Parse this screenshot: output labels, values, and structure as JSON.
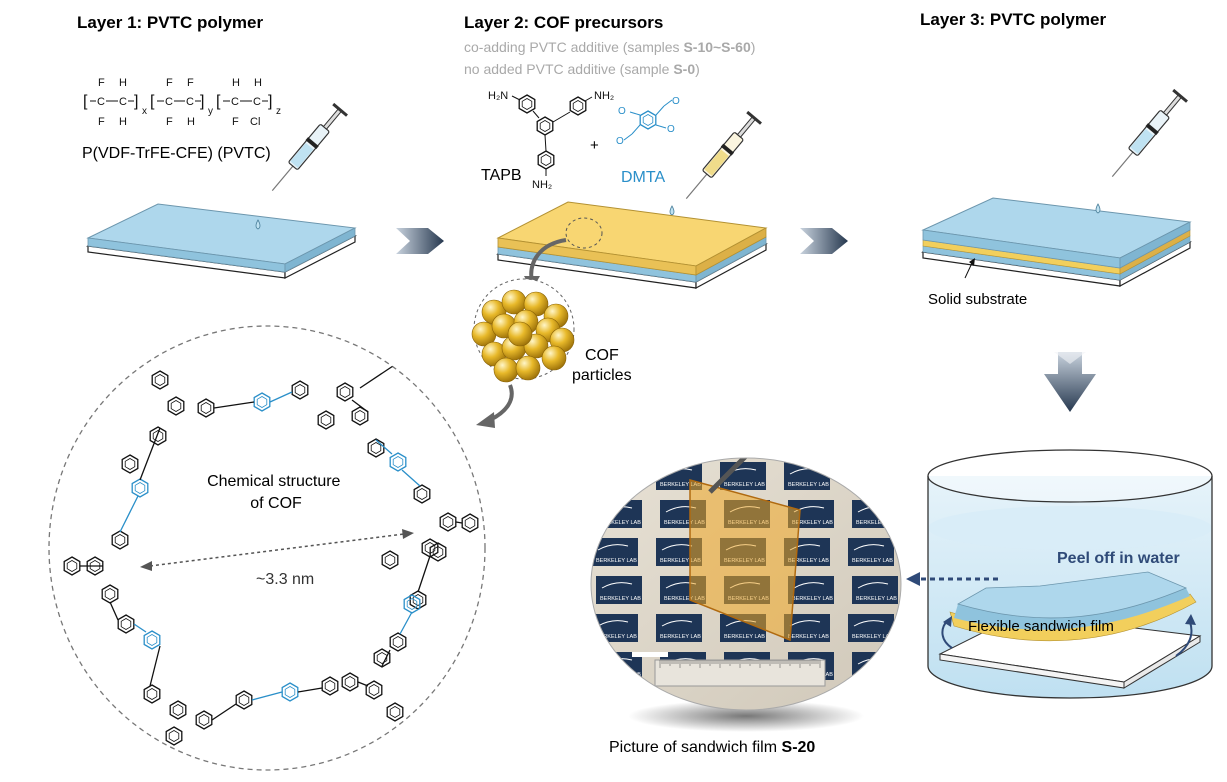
{
  "layers": {
    "layer1_title": "Layer 1: PVTC polymer",
    "layer2_title": "Layer 2: COF precursors",
    "layer3_title": "Layer 3: PVTC polymer",
    "layer2_note1_prefix": "co-adding PVTC additive (samples ",
    "layer2_note1_bold": "S-10~S-60",
    "layer2_note1_suffix": ")",
    "layer2_note2_prefix": "no added PVTC additive (sample ",
    "layer2_note2_bold": "S-0",
    "layer2_note2_suffix": ")"
  },
  "polymer": {
    "name": "P(VDF-TrFE-CFE) (PVTC)",
    "subscripts": [
      "x",
      "y",
      "z"
    ],
    "atoms": {
      "F": "F",
      "H": "H",
      "C": "C",
      "Cl": "Cl"
    }
  },
  "precursors": {
    "tapb": "TAPB",
    "dmta": "DMTA",
    "plus": "+",
    "amine": "H₂N",
    "amine_r": "NH₂"
  },
  "labels": {
    "solid_substrate": "Solid substrate",
    "cof_particles_1": "COF",
    "cof_particles_2": "particles",
    "chem_structure_1": "Chemical structure",
    "chem_structure_2": "of COF",
    "pore_size": "~3.3 nm",
    "peel_off": "Peel off in water",
    "flexible_film": "Flexible sandwich film",
    "picture_caption_prefix": "Picture of sandwich film ",
    "picture_caption_bold": "S-20",
    "berkeley_lab": "BERKELEY LAB"
  },
  "colors": {
    "pvtc_blue": "#a8d3e8",
    "cof_yellow": "#f6d776",
    "dmta_blue": "#2a8fc9",
    "arrow_dark": "#2f4258",
    "peel_text": "#2f4a78",
    "note_gray": "#a9a9a9"
  }
}
